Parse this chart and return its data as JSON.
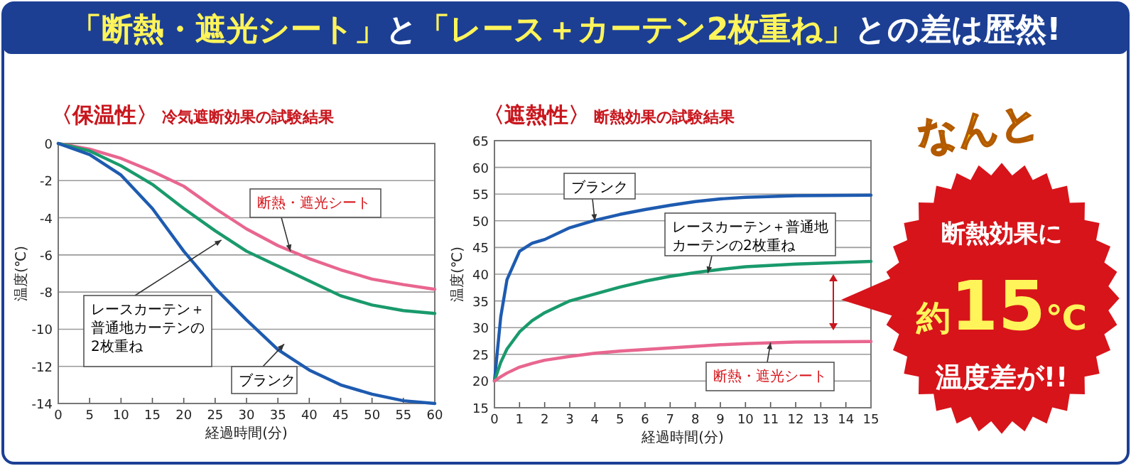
{
  "chart_data": [
    {
      "type": "line",
      "title": "〈保温性〉",
      "subtitle": "冷気遮断効果の試験結果",
      "xlabel": "経過時間(分)",
      "ylabel": "温度(℃)",
      "x": [
        0,
        5,
        10,
        15,
        20,
        25,
        30,
        35,
        40,
        45,
        50,
        55,
        60
      ],
      "series": [
        {
          "color": "#e8668f",
          "values": [
            0,
            -0.3,
            -0.8,
            -1.5,
            -2.3,
            -3.5,
            -4.6,
            -5.5,
            -6.2,
            -6.8,
            -7.3,
            -7.6,
            -7.85
          ]
        },
        {
          "color": "#1a9a6c",
          "values": [
            0,
            -0.4,
            -1.2,
            -2.2,
            -3.5,
            -4.7,
            -5.8,
            -6.6,
            -7.4,
            -8.2,
            -8.7,
            -9.0,
            -9.15
          ]
        },
        {
          "color": "#1e5bb0",
          "values": [
            0,
            -0.6,
            -1.7,
            -3.5,
            -5.8,
            -7.8,
            -9.5,
            -11.1,
            -12.2,
            -13.0,
            -13.5,
            -13.85,
            -14.0
          ]
        }
      ],
      "xlim": [
        0,
        60
      ],
      "xticks": [
        0,
        5,
        10,
        15,
        20,
        25,
        30,
        35,
        40,
        45,
        50,
        55,
        60
      ],
      "ylim": [
        -14,
        0
      ],
      "yticks": [
        -14,
        -12,
        -10,
        -8,
        -6,
        -4,
        -2,
        0
      ],
      "grid": "y",
      "annotations": [
        {
          "text": "断熱・遮光シート",
          "x": 37,
          "y": -5.8
        },
        {
          "text": "レースカーテン＋普通地カーテンの2枚重ね",
          "x": 26,
          "y": -5.2
        },
        {
          "text": "ブランク",
          "x": 36,
          "y": -10.8
        }
      ]
    },
    {
      "type": "line",
      "title": "〈遮熱性〉",
      "subtitle": "断熱効果の試験結果",
      "xlabel": "経過時間(分)",
      "ylabel": "温度(℃)",
      "x": [
        0,
        0.25,
        0.5,
        1,
        1.5,
        2,
        3,
        4,
        5,
        6,
        7,
        8,
        9,
        10,
        12,
        15
      ],
      "series": [
        {
          "color": "#1e5bb0",
          "values": [
            20,
            32,
            39,
            44.3,
            45.8,
            46.5,
            48.7,
            50.1,
            51.2,
            52.1,
            52.9,
            53.6,
            54.1,
            54.4,
            54.7,
            54.8
          ]
        },
        {
          "color": "#1a9a6c",
          "values": [
            20,
            23.5,
            26,
            29.2,
            31.3,
            32.8,
            35,
            36.3,
            37.6,
            38.7,
            39.6,
            40.3,
            40.9,
            41.4,
            41.9,
            42.4
          ]
        },
        {
          "color": "#e8668f",
          "values": [
            20,
            20.8,
            21.5,
            22.6,
            23.3,
            23.9,
            24.6,
            25.2,
            25.6,
            25.9,
            26.2,
            26.5,
            26.8,
            27.0,
            27.3,
            27.4
          ]
        }
      ],
      "xlim": [
        0,
        15
      ],
      "xticks": [
        0,
        1,
        2,
        3,
        4,
        5,
        6,
        7,
        8,
        9,
        10,
        11,
        12,
        13,
        14,
        15
      ],
      "ylim": [
        15,
        65
      ],
      "yticks": [
        15,
        20,
        25,
        30,
        35,
        40,
        45,
        50,
        55,
        60,
        65
      ],
      "grid": "y",
      "annotations": [
        {
          "text": "ブランク",
          "x": 4,
          "y": 50
        },
        {
          "text": "レースカーテン＋普通地カーテンの2枚重ね",
          "x": 8.5,
          "y": 40.2
        },
        {
          "text": "断熱・遮光シート",
          "x": 11,
          "y": 27.2
        }
      ]
    },
    {
      "type": "other",
      "title": "「断熱・遮光シート」と「レース＋カーテン2枚重ね」との差は歴然!",
      "annotations": [
        "なんと",
        "断熱効果に",
        "約15℃",
        "温度差が!!"
      ]
    }
  ]
}
